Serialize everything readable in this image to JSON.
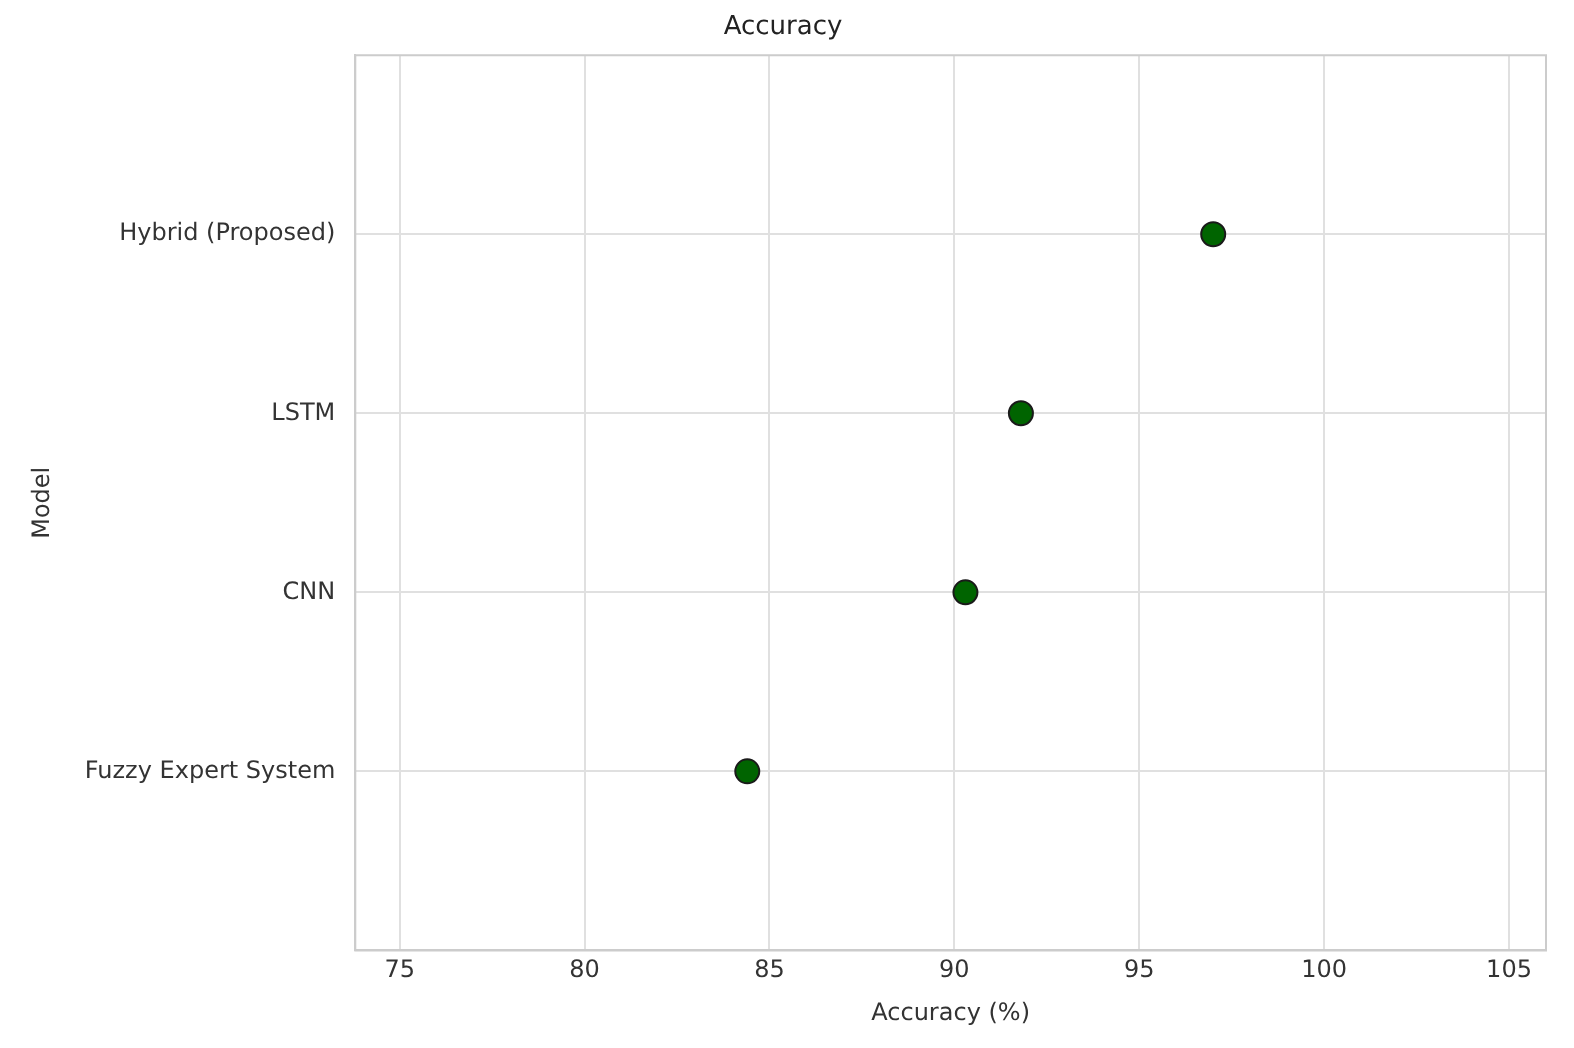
{
  "chart_data": {
    "type": "scatter",
    "title": "Accuracy",
    "xlabel": "Accuracy (%)",
    "ylabel": "Model",
    "categories": [
      "Hybrid (Proposed)",
      "LSTM",
      "CNN",
      "Fuzzy Expert System"
    ],
    "series": [
      {
        "color": "#006400",
        "values": [
          97.0,
          91.8,
          90.3,
          84.4
        ]
      }
    ],
    "orientation": "horizontal",
    "marker": "circle",
    "xlim": [
      73.8,
      106
    ],
    "xticks": [
      75,
      80,
      85,
      90,
      95,
      100,
      105
    ],
    "grid": true,
    "legend": false
  }
}
